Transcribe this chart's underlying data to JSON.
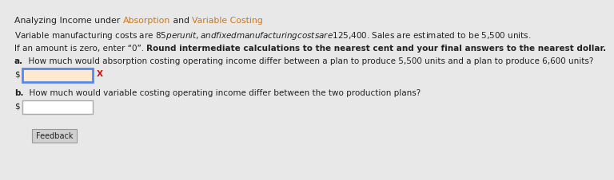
{
  "title_plain": "Analyzing Income under ",
  "title_absorption": "Absorption",
  "title_middle": " and ",
  "title_variable": "Variable Costing",
  "line1": "Variable manufacturing costs are $85 per unit, and fixed manufacturing costs are $125,400. Sales are estimated to be 5,500 units.",
  "line2_plain": "If an amount is zero, enter “0”. ",
  "line2_bold": "Round intermediate calculations to the nearest cent and your final answers to the nearest dollar.",
  "label_a": "a.",
  "question_a": "  How much would absorption costing operating income differ between a plan to produce 5,500 units and a plan to produce 6,600 units?",
  "label_b": "b.",
  "question_b": "  How much would variable costing operating income differ between the two production plans?",
  "feedback_text": "Feedback",
  "dollar_sign": "$",
  "x_label": "X",
  "bg_color": "#e8e8e8",
  "input_box_a_color": "#fde9d0",
  "input_box_a_border": "#5588ee",
  "input_box_b_color": "#ffffff",
  "input_box_b_border": "#aaaaaa",
  "feedback_bg": "#d0d0d0",
  "title_link_color": "#c87820",
  "text_color": "#222222",
  "x_color": "#cc1111",
  "font_size_title": 7.8,
  "font_size_body": 7.5,
  "font_size_bold_body": 7.5,
  "font_size_feedback": 7.0
}
